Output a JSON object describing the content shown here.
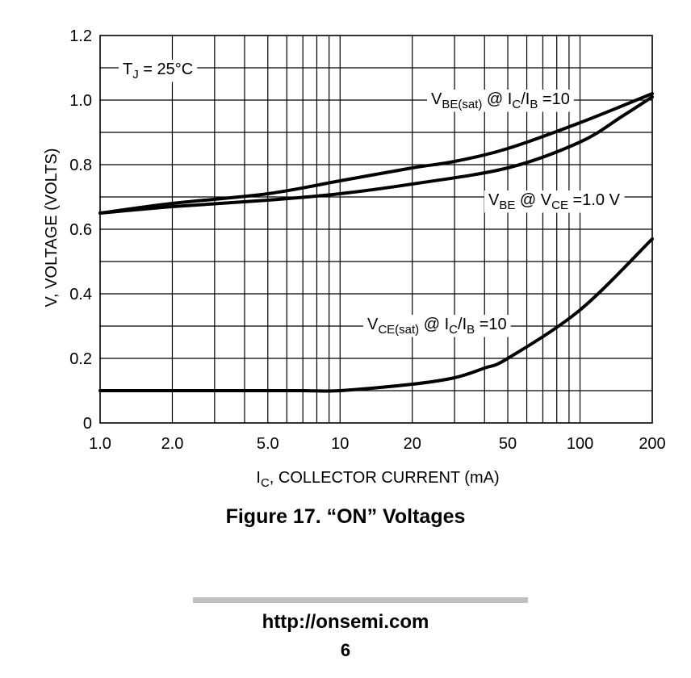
{
  "chart_data": {
    "type": "line",
    "x_scale": "log",
    "xlim": [
      1.0,
      200
    ],
    "ylim": [
      0,
      1.2
    ],
    "grid": true,
    "x_tick_labels": [
      {
        "value": 1.0,
        "label": "1.0"
      },
      {
        "value": 2.0,
        "label": "2.0"
      },
      {
        "value": 5.0,
        "label": "5.0"
      },
      {
        "value": 10,
        "label": "10"
      },
      {
        "value": 20,
        "label": "20"
      },
      {
        "value": 50,
        "label": "50"
      },
      {
        "value": 100,
        "label": "100"
      },
      {
        "value": 200,
        "label": "200"
      }
    ],
    "y_tick_labels": [
      {
        "value": 0,
        "label": "0"
      },
      {
        "value": 0.2,
        "label": "0.2"
      },
      {
        "value": 0.4,
        "label": "0.4"
      },
      {
        "value": 0.6,
        "label": "0.6"
      },
      {
        "value": 0.8,
        "label": "0.8"
      },
      {
        "value": 1.0,
        "label": "1.0"
      },
      {
        "value": 1.2,
        "label": "1.2"
      }
    ],
    "xlabel": {
      "main": "I",
      "sub": "C",
      "rest": ", COLLECTOR CURRENT (mA)"
    },
    "ylabel": "V, VOLTAGE (VOLTS)",
    "condition": {
      "main": "T",
      "sub": "J",
      "rest": " = 25°C"
    },
    "series": [
      {
        "label_parts": [
          [
            "V",
            ""
          ],
          [
            "BE(sat)",
            "sub"
          ],
          [
            " @ I",
            ""
          ],
          [
            "C",
            "sub"
          ],
          [
            "/I",
            ""
          ],
          [
            "B",
            "sub"
          ],
          [
            " =10",
            ""
          ]
        ],
        "x": [
          1.0,
          2.0,
          5.0,
          10,
          20,
          30,
          50,
          100,
          200
        ],
        "y": [
          0.65,
          0.68,
          0.71,
          0.75,
          0.79,
          0.81,
          0.85,
          0.93,
          1.02
        ]
      },
      {
        "label_parts": [
          [
            "V",
            ""
          ],
          [
            "BE",
            "sub"
          ],
          [
            " @ V",
            ""
          ],
          [
            "CE",
            "sub"
          ],
          [
            " =1.0 V",
            ""
          ]
        ],
        "x": [
          1.0,
          2.0,
          5.0,
          10,
          20,
          50,
          100,
          150,
          200
        ],
        "y": [
          0.65,
          0.67,
          0.69,
          0.71,
          0.74,
          0.79,
          0.87,
          0.95,
          1.01
        ]
      },
      {
        "label_parts": [
          [
            "V",
            ""
          ],
          [
            "CE(sat)",
            "sub"
          ],
          [
            " @ I",
            ""
          ],
          [
            "C",
            "sub"
          ],
          [
            "/I",
            ""
          ],
          [
            "B",
            "sub"
          ],
          [
            " =10",
            ""
          ]
        ],
        "x": [
          1.0,
          2.0,
          5.0,
          7.0,
          10,
          20,
          30,
          40,
          50,
          100,
          200
        ],
        "y": [
          0.1,
          0.1,
          0.1,
          0.1,
          0.1,
          0.12,
          0.14,
          0.17,
          0.2,
          0.35,
          0.57
        ]
      }
    ]
  },
  "caption": "Figure 17. “ON” Voltages",
  "footer": {
    "url": "http://onsemi.com",
    "page": "6"
  }
}
